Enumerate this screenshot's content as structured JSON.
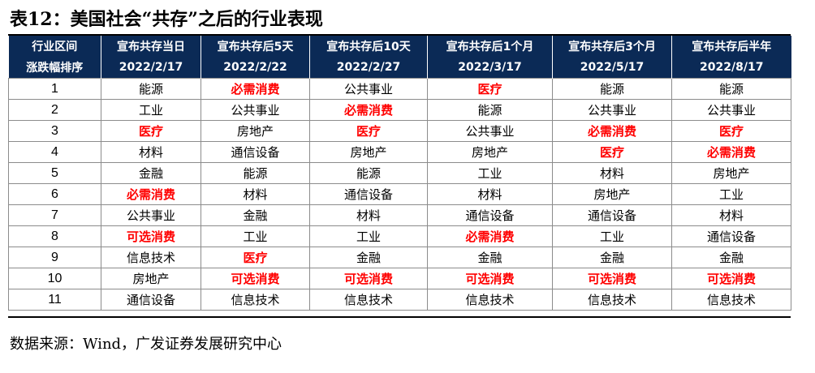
{
  "title": "表12：美国社会“共存”之后的行业表现",
  "header": {
    "row1": [
      "行业区间",
      "宣布共存当日",
      "宣布共存后5天",
      "宣布共存后10天",
      "宣布共存后1个月",
      "宣布共存后3个月",
      "宣布共存后半年"
    ],
    "row2": [
      "涨跌幅排序",
      "2022/2/17",
      "2022/2/22",
      "2022/2/27",
      "2022/3/17",
      "2022/5/17",
      "2022/8/17"
    ]
  },
  "highlight_color": "#ff0000",
  "header_bg": "#0b2a56",
  "rows": [
    {
      "rank": "1",
      "cells": [
        {
          "text": "能源",
          "hl": false
        },
        {
          "text": "必需消费",
          "hl": true
        },
        {
          "text": "公共事业",
          "hl": false
        },
        {
          "text": "医疗",
          "hl": true
        },
        {
          "text": "能源",
          "hl": false
        },
        {
          "text": "能源",
          "hl": false
        }
      ]
    },
    {
      "rank": "2",
      "cells": [
        {
          "text": "工业",
          "hl": false
        },
        {
          "text": "公共事业",
          "hl": false
        },
        {
          "text": "必需消费",
          "hl": true
        },
        {
          "text": "能源",
          "hl": false
        },
        {
          "text": "公共事业",
          "hl": false
        },
        {
          "text": "公共事业",
          "hl": false
        }
      ]
    },
    {
      "rank": "3",
      "cells": [
        {
          "text": "医疗",
          "hl": true
        },
        {
          "text": "房地产",
          "hl": false
        },
        {
          "text": "医疗",
          "hl": true
        },
        {
          "text": "公共事业",
          "hl": false
        },
        {
          "text": "必需消费",
          "hl": true
        },
        {
          "text": "医疗",
          "hl": true
        }
      ]
    },
    {
      "rank": "4",
      "cells": [
        {
          "text": "材料",
          "hl": false
        },
        {
          "text": "通信设备",
          "hl": false
        },
        {
          "text": "房地产",
          "hl": false
        },
        {
          "text": "房地产",
          "hl": false
        },
        {
          "text": "医疗",
          "hl": true
        },
        {
          "text": "必需消费",
          "hl": true
        }
      ]
    },
    {
      "rank": "5",
      "cells": [
        {
          "text": "金融",
          "hl": false
        },
        {
          "text": "能源",
          "hl": false
        },
        {
          "text": "能源",
          "hl": false
        },
        {
          "text": "工业",
          "hl": false
        },
        {
          "text": "材料",
          "hl": false
        },
        {
          "text": "房地产",
          "hl": false
        }
      ]
    },
    {
      "rank": "6",
      "cells": [
        {
          "text": "必需消费",
          "hl": true
        },
        {
          "text": "材料",
          "hl": false
        },
        {
          "text": "通信设备",
          "hl": false
        },
        {
          "text": "材料",
          "hl": false
        },
        {
          "text": "房地产",
          "hl": false
        },
        {
          "text": "工业",
          "hl": false
        }
      ]
    },
    {
      "rank": "7",
      "cells": [
        {
          "text": "公共事业",
          "hl": false
        },
        {
          "text": "金融",
          "hl": false
        },
        {
          "text": "材料",
          "hl": false
        },
        {
          "text": "通信设备",
          "hl": false
        },
        {
          "text": "通信设备",
          "hl": false
        },
        {
          "text": "材料",
          "hl": false
        }
      ]
    },
    {
      "rank": "8",
      "cells": [
        {
          "text": "可选消费",
          "hl": true
        },
        {
          "text": "工业",
          "hl": false
        },
        {
          "text": "工业",
          "hl": false
        },
        {
          "text": "必需消费",
          "hl": true
        },
        {
          "text": "工业",
          "hl": false
        },
        {
          "text": "通信设备",
          "hl": false
        }
      ]
    },
    {
      "rank": "9",
      "cells": [
        {
          "text": "信息技术",
          "hl": false
        },
        {
          "text": "医疗",
          "hl": true
        },
        {
          "text": "金融",
          "hl": false
        },
        {
          "text": "金融",
          "hl": false
        },
        {
          "text": "金融",
          "hl": false
        },
        {
          "text": "金融",
          "hl": false
        }
      ]
    },
    {
      "rank": "10",
      "cells": [
        {
          "text": "房地产",
          "hl": false
        },
        {
          "text": "可选消费",
          "hl": true
        },
        {
          "text": "可选消费",
          "hl": true
        },
        {
          "text": "可选消费",
          "hl": true
        },
        {
          "text": "可选消费",
          "hl": true
        },
        {
          "text": "可选消费",
          "hl": true
        }
      ]
    },
    {
      "rank": "11",
      "cells": [
        {
          "text": "通信设备",
          "hl": false
        },
        {
          "text": "信息技术",
          "hl": false
        },
        {
          "text": "信息技术",
          "hl": false
        },
        {
          "text": "信息技术",
          "hl": false
        },
        {
          "text": "信息技术",
          "hl": false
        },
        {
          "text": "信息技术",
          "hl": false
        }
      ]
    }
  ],
  "source": "数据来源：Wind，广发证券发展研究中心"
}
